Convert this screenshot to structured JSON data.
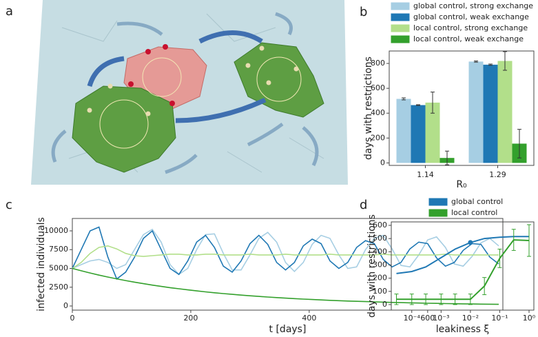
{
  "illustration": {
    "panel": "a"
  },
  "chart_data": [
    {
      "type": "bar",
      "panel": "b",
      "xlabel": "R₀",
      "ylabel": "days with restrictions",
      "categories": [
        "1.14",
        "1.29"
      ],
      "series": [
        {
          "name": "global control, strong exchange",
          "color": "#a6cee3",
          "values": [
            515,
            815
          ],
          "errors": [
            8,
            5
          ]
        },
        {
          "name": "global control, weak exchange",
          "color": "#1f78b4",
          "values": [
            465,
            790
          ],
          "errors": [
            3,
            5
          ]
        },
        {
          "name": "local control, strong exchange",
          "color": "#b2df8a",
          "values": [
            485,
            820
          ],
          "errors": [
            85,
            75
          ]
        },
        {
          "name": "local control, weak exchange",
          "color": "#33a02c",
          "values": [
            40,
            155
          ],
          "errors": [
            55,
            115
          ]
        }
      ],
      "ylim": [
        -20,
        900
      ],
      "yticks": [
        0,
        200,
        400,
        600,
        800
      ],
      "legend": "top"
    },
    {
      "type": "line",
      "panel": "c",
      "xlabel": "t [days]",
      "ylabel": "infected individuals",
      "x": [
        0,
        15,
        30,
        45,
        60,
        75,
        90,
        105,
        120,
        135,
        150,
        165,
        180,
        195,
        210,
        225,
        240,
        255,
        270,
        285,
        300,
        315,
        330,
        345,
        360,
        375,
        390,
        405,
        420,
        435,
        450,
        465,
        480,
        495,
        510,
        525,
        540,
        555,
        570,
        585,
        600,
        615,
        630,
        645,
        660,
        675,
        690,
        705,
        720
      ],
      "series": [
        {
          "color": "#a6cee3",
          "values": [
            5000,
            5500,
            6000,
            6200,
            5800,
            5000,
            5500,
            7500,
            9500,
            10200,
            8500,
            5500,
            4200,
            5000,
            7500,
            9500,
            9600,
            7000,
            4800,
            4800,
            6800,
            9000,
            9800,
            8500,
            5800,
            4600,
            5800,
            8200,
            9400,
            9000,
            6800,
            5000,
            5200,
            7500,
            9000,
            9400,
            7600,
            5400,
            5200,
            6800,
            8800,
            9200,
            7800,
            5600,
            5300,
            6600,
            8400,
            9000,
            8000
          ]
        },
        {
          "color": "#1f78b4",
          "values": [
            5000,
            7500,
            10000,
            10500,
            6500,
            3600,
            4500,
            6500,
            9000,
            10000,
            7500,
            5000,
            4200,
            6000,
            8500,
            9400,
            7800,
            5300,
            4500,
            6000,
            8300,
            9400,
            8200,
            5800,
            4800,
            5800,
            8000,
            8900,
            8300,
            6000,
            5000,
            5800,
            7800,
            8700,
            8300,
            6200,
            5200,
            5800,
            7600,
            8500,
            8300,
            6400,
            5300,
            5800,
            7400,
            8300,
            8200,
            6500,
            5600
          ]
        },
        {
          "color": "#b2df8a",
          "values": [
            5000,
            5800,
            7000,
            7800,
            8000,
            7600,
            7000,
            6700,
            6600,
            6700,
            6800,
            6900,
            6900,
            6800,
            6800,
            6900,
            6900,
            6800,
            6800,
            6800,
            6900,
            6800,
            6800,
            6800,
            6900,
            6800,
            6800,
            6800,
            6800,
            6900,
            6800,
            6800,
            6800,
            6800,
            6800,
            6900,
            6800,
            6800,
            6800,
            6800,
            6800,
            6800,
            6900,
            6800,
            6800,
            6800,
            6800,
            6800,
            6800
          ]
        },
        {
          "color": "#33a02c",
          "values": [
            5000,
            4685,
            4390,
            4113,
            3854,
            3611,
            3384,
            3171,
            2971,
            2784,
            2608,
            2444,
            2290,
            2146,
            2011,
            1884,
            1765,
            1654,
            1550,
            1452,
            1361,
            1275,
            1195,
            1119,
            1049,
            983,
            921,
            863,
            808,
            757,
            710,
            665,
            623,
            584,
            547,
            513,
            480,
            450,
            422,
            395,
            370,
            347,
            325,
            305,
            285,
            267,
            251,
            235,
            220
          ]
        }
      ],
      "xlim": [
        0,
        727
      ],
      "xticks": [
        0,
        200,
        400,
        600
      ],
      "ylim": [
        -550,
        11650
      ],
      "yticks": [
        0,
        2500,
        5000,
        7500,
        10000
      ]
    },
    {
      "type": "line",
      "panel": "d",
      "xlabel": "leakiness ξ",
      "ylabel": "days with restrictions",
      "x": [
        3e-05,
        0.0001,
        0.0003,
        0.001,
        0.003,
        0.01,
        0.03,
        0.1,
        0.3,
        1
      ],
      "series": [
        {
          "name": "global control",
          "color": "#1f78b4",
          "values": [
            235,
            250,
            285,
            355,
            420,
            470,
            500,
            510,
            515,
            515
          ]
        },
        {
          "name": "local control",
          "color": "#33a02c",
          "values": [
            40,
            40,
            40,
            40,
            40,
            40,
            140,
            350,
            490,
            485
          ],
          "errors": [
            40,
            40,
            40,
            40,
            40,
            40,
            65,
            70,
            80,
            120
          ]
        }
      ],
      "highlight": {
        "x": 0.01,
        "y": 470
      },
      "xlog": true,
      "xlim": [
        2e-05,
        1.46
      ],
      "xticks": [
        {
          "value": 0.0001,
          "label": "10⁻⁴"
        },
        {
          "value": 0.001,
          "label": "10⁻³"
        },
        {
          "value": 0.01,
          "label": "10⁻²"
        },
        {
          "value": 0.1,
          "label": "10⁻¹"
        },
        {
          "value": 1,
          "label": "10⁰"
        }
      ],
      "ylim": [
        -42,
        626
      ],
      "yticks": [
        0,
        100,
        200,
        300,
        400,
        500,
        600
      ],
      "legend": "top"
    }
  ]
}
